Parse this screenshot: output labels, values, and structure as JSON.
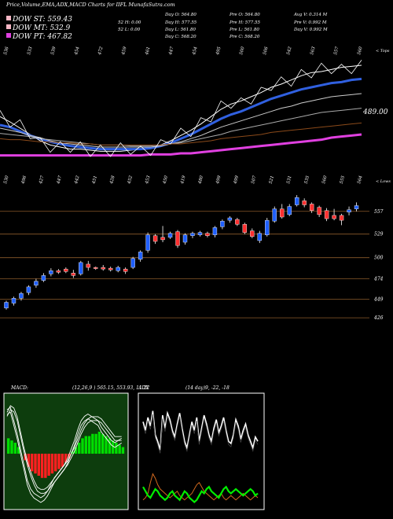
{
  "header": {
    "title": "Price,Volume,EMA,ADX,MACD Charts for IIFL",
    "site": "MunafaSutra.com"
  },
  "legend": [
    {
      "label": "DOW ST: 559.43",
      "color": "#f5b6c4"
    },
    {
      "label": "DOW MT: 532.9",
      "color": "#f5b6c4"
    },
    {
      "label": "DOW PT: 467.82",
      "color": "#e040e0"
    }
  ],
  "stats": {
    "col1": [
      "Day O: 564.80",
      "Day H: 577.55",
      "Day L: 561.80",
      "Day C: 568.20"
    ],
    "col1_prefix": [
      "",
      "52 H: 0.00",
      "52 L: 0.00",
      ""
    ],
    "col2": [
      "Pre O: 564.80",
      "Pre H: 577.55",
      "Pre L: 561.80",
      "Pre C: 568.20"
    ],
    "col3": [
      "Avg V: 0.314 M",
      "Pre V: 0.992 M",
      "Day V: 0.992 M"
    ]
  },
  "chart_data": [
    {
      "type": "line",
      "name": "ema",
      "top_labels": [
        "536",
        "533",
        "539",
        "454",
        "472",
        "459",
        "461",
        "447",
        "454",
        "495",
        "500",
        "506",
        "542",
        "563",
        "557",
        "560"
      ],
      "bottom_labels": [
        "530",
        "496",
        "427",
        "447",
        "442",
        "451",
        "428",
        "452",
        "453",
        "450",
        "419",
        "480",
        "499",
        "499",
        "507",
        "521",
        "531",
        "535",
        "560",
        "555",
        "564"
      ],
      "axis_note_top": "< Tops",
      "axis_note_bottom": "< Lows",
      "price_label": "489.00",
      "price_line_color": "#3060e0",
      "series": [
        {
          "color": "#ffffff",
          "values": [
            505,
            500,
            494,
            488,
            482,
            478,
            476,
            474,
            474,
            473,
            472,
            472,
            472,
            473,
            474,
            475,
            478,
            482,
            487,
            492,
            498,
            505,
            512,
            517,
            520,
            524,
            528,
            533,
            536,
            540,
            544,
            547,
            548,
            550,
            552,
            553,
            554
          ]
        },
        {
          "color": "#3060e0",
          "values": [
            497,
            495,
            491,
            487,
            484,
            481,
            479,
            477,
            476,
            475,
            474,
            474,
            474,
            474,
            474,
            475,
            477,
            480,
            484,
            488,
            493,
            498,
            503,
            507,
            510,
            514,
            518,
            522,
            525,
            528,
            531,
            533,
            535,
            537,
            538,
            540,
            541
          ]
        },
        {
          "color": "#cccccc",
          "values": [
            494,
            492,
            490,
            487,
            485,
            482,
            480,
            479,
            478,
            477,
            476,
            476,
            476,
            476,
            476,
            476,
            477,
            479,
            481,
            484,
            487,
            491,
            495,
            498,
            501,
            504,
            507,
            510,
            513,
            515,
            518,
            520,
            522,
            524,
            525,
            526,
            527
          ]
        },
        {
          "color": "#aaaaaa",
          "values": [
            489,
            488,
            487,
            486,
            484,
            483,
            482,
            481,
            480,
            479,
            478,
            478,
            478,
            477,
            477,
            477,
            478,
            479,
            480,
            482,
            484,
            486,
            488,
            491,
            493,
            495,
            497,
            499,
            501,
            503,
            505,
            507,
            509,
            510,
            511,
            512,
            513
          ]
        },
        {
          "color": "#8b4a1a",
          "values": [
            484,
            483,
            483,
            482,
            481,
            481,
            480,
            480,
            479,
            479,
            478,
            478,
            478,
            478,
            478,
            478,
            478,
            479,
            479,
            480,
            481,
            482,
            484,
            485,
            486,
            487,
            488,
            490,
            491,
            492,
            493,
            494,
            495,
            496,
            497,
            498,
            499
          ]
        },
        {
          "color": "#e040e0",
          "values": [
            468,
            468,
            468,
            468,
            468,
            468,
            468,
            468,
            468,
            468,
            468,
            468,
            468,
            468,
            468,
            469,
            469,
            469,
            470,
            470,
            471,
            472,
            473,
            474,
            475,
            476,
            477,
            478,
            479,
            480,
            481,
            482,
            483,
            485,
            486,
            487,
            488
          ]
        }
      ]
    },
    {
      "type": "candlestick",
      "name": "price",
      "ylabels": [
        "557",
        "529",
        "500",
        "474",
        "449",
        "426"
      ],
      "candles": [
        {
          "o": 438,
          "c": 445,
          "h": 447,
          "l": 436,
          "up": true
        },
        {
          "o": 444,
          "c": 450,
          "h": 452,
          "l": 441,
          "up": true
        },
        {
          "o": 450,
          "c": 456,
          "h": 458,
          "l": 447,
          "up": true
        },
        {
          "o": 457,
          "c": 464,
          "h": 466,
          "l": 454,
          "up": true
        },
        {
          "o": 466,
          "c": 471,
          "h": 474,
          "l": 463,
          "up": true
        },
        {
          "o": 472,
          "c": 478,
          "h": 481,
          "l": 470,
          "up": true
        },
        {
          "o": 480,
          "c": 484,
          "h": 487,
          "l": 477,
          "up": true
        },
        {
          "o": 484,
          "c": 482,
          "h": 486,
          "l": 480,
          "up": false
        },
        {
          "o": 486,
          "c": 483,
          "h": 488,
          "l": 481,
          "up": false
        },
        {
          "o": 481,
          "c": 478,
          "h": 485,
          "l": 475,
          "up": false
        },
        {
          "o": 480,
          "c": 494,
          "h": 496,
          "l": 478,
          "up": true
        },
        {
          "o": 492,
          "c": 488,
          "h": 496,
          "l": 484,
          "up": false
        },
        {
          "o": 488,
          "c": 487,
          "h": 489,
          "l": 485,
          "up": false
        },
        {
          "o": 488,
          "c": 486,
          "h": 491,
          "l": 484,
          "up": false
        },
        {
          "o": 487,
          "c": 485,
          "h": 489,
          "l": 483,
          "up": false
        },
        {
          "o": 484,
          "c": 488,
          "h": 490,
          "l": 482,
          "up": true
        },
        {
          "o": 486,
          "c": 483,
          "h": 488,
          "l": 480,
          "up": false
        },
        {
          "o": 488,
          "c": 499,
          "h": 501,
          "l": 486,
          "up": true
        },
        {
          "o": 498,
          "c": 507,
          "h": 509,
          "l": 495,
          "up": true
        },
        {
          "o": 509,
          "c": 528,
          "h": 531,
          "l": 506,
          "up": true
        },
        {
          "o": 527,
          "c": 520,
          "h": 529,
          "l": 517,
          "up": false
        },
        {
          "o": 525,
          "c": 522,
          "h": 539,
          "l": 519,
          "up": false
        },
        {
          "o": 525,
          "c": 530,
          "h": 532,
          "l": 523,
          "up": true
        },
        {
          "o": 532,
          "c": 515,
          "h": 534,
          "l": 512,
          "up": false
        },
        {
          "o": 519,
          "c": 528,
          "h": 530,
          "l": 516,
          "up": true
        },
        {
          "o": 527,
          "c": 530,
          "h": 532,
          "l": 524,
          "up": true
        },
        {
          "o": 528,
          "c": 531,
          "h": 533,
          "l": 526,
          "up": true
        },
        {
          "o": 530,
          "c": 527,
          "h": 532,
          "l": 525,
          "up": false
        },
        {
          "o": 528,
          "c": 537,
          "h": 539,
          "l": 525,
          "up": true
        },
        {
          "o": 538,
          "c": 545,
          "h": 547,
          "l": 535,
          "up": true
        },
        {
          "o": 546,
          "c": 549,
          "h": 551,
          "l": 543,
          "up": true
        },
        {
          "o": 547,
          "c": 541,
          "h": 549,
          "l": 539,
          "up": false
        },
        {
          "o": 541,
          "c": 531,
          "h": 543,
          "l": 529,
          "up": false
        },
        {
          "o": 533,
          "c": 526,
          "h": 536,
          "l": 524,
          "up": false
        },
        {
          "o": 521,
          "c": 530,
          "h": 533,
          "l": 518,
          "up": true
        },
        {
          "o": 528,
          "c": 546,
          "h": 549,
          "l": 526,
          "up": true
        },
        {
          "o": 545,
          "c": 560,
          "h": 563,
          "l": 543,
          "up": true
        },
        {
          "o": 560,
          "c": 550,
          "h": 566,
          "l": 548,
          "up": false
        },
        {
          "o": 553,
          "c": 563,
          "h": 566,
          "l": 551,
          "up": true
        },
        {
          "o": 565,
          "c": 574,
          "h": 577,
          "l": 563,
          "up": true
        },
        {
          "o": 570,
          "c": 565,
          "h": 573,
          "l": 562,
          "up": false
        },
        {
          "o": 566,
          "c": 558,
          "h": 568,
          "l": 555,
          "up": false
        },
        {
          "o": 562,
          "c": 553,
          "h": 564,
          "l": 550,
          "up": false
        },
        {
          "o": 558,
          "c": 548,
          "h": 561,
          "l": 545,
          "up": false
        },
        {
          "o": 552,
          "c": 548,
          "h": 560,
          "l": 546,
          "up": false
        },
        {
          "o": 552,
          "c": 546,
          "h": 554,
          "l": 540,
          "up": false
        },
        {
          "o": 556,
          "c": 559,
          "h": 563,
          "l": 552,
          "up": true
        },
        {
          "o": 560,
          "c": 564,
          "h": 568,
          "l": 557,
          "up": true
        }
      ]
    },
    {
      "type": "area",
      "name": "macd",
      "label": "MACD:",
      "params": "(12,26,9 ) 565.15, 553.93, 11.22",
      "histogram": [
        14,
        12,
        10,
        6,
        0,
        -6,
        -12,
        -16,
        -18,
        -20,
        -22,
        -22,
        -20,
        -18,
        -16,
        -14,
        -12,
        -8,
        -4,
        2,
        6,
        10,
        14,
        16,
        16,
        18,
        18,
        20,
        18,
        16,
        14,
        12,
        10,
        8,
        6
      ],
      "macd": [
        40,
        42,
        30,
        18,
        4,
        -10,
        -24,
        -32,
        -36,
        -38,
        -40,
        -38,
        -34,
        -28,
        -22,
        -18,
        -14,
        -10,
        -4,
        4,
        12,
        22,
        30,
        34,
        36,
        34,
        32,
        30,
        24,
        20,
        16,
        12,
        10,
        12,
        14
      ],
      "signal": [
        34,
        40,
        38,
        30,
        16,
        2,
        -10,
        -20,
        -28,
        -34,
        -36,
        -36,
        -34,
        -30,
        -26,
        -22,
        -18,
        -14,
        -10,
        -4,
        2,
        10,
        18,
        24,
        28,
        30,
        30,
        30,
        28,
        24,
        20,
        16,
        12,
        12,
        12
      ]
    },
    {
      "type": "line",
      "name": "adx",
      "label": "ADX",
      "params": "(14 day)9, -22, -18",
      "adx": [
        78,
        70,
        82,
        74,
        88,
        66,
        60,
        52,
        84,
        72,
        86,
        80,
        70,
        64,
        76,
        86,
        72,
        60,
        54,
        66,
        78,
        70,
        82,
        60,
        72,
        84,
        76,
        66,
        60,
        72,
        80,
        68,
        74,
        82,
        70,
        60,
        58,
        66,
        80,
        74,
        62,
        70,
        76,
        66,
        60,
        54,
        64,
        60
      ],
      "plus_di": [
        18,
        14,
        10,
        8,
        12,
        16,
        14,
        10,
        8,
        6,
        8,
        12,
        14,
        10,
        8,
        6,
        10,
        14,
        12,
        8,
        6,
        4,
        6,
        10,
        14,
        12,
        16,
        18,
        14,
        12,
        10,
        8,
        12,
        16,
        18,
        14,
        12,
        14,
        16,
        14,
        12,
        10,
        12,
        14,
        16,
        14,
        10,
        12
      ],
      "minus_di": [
        6,
        8,
        12,
        22,
        30,
        26,
        20,
        16,
        14,
        12,
        10,
        8,
        10,
        12,
        14,
        10,
        8,
        6,
        8,
        10,
        12,
        16,
        20,
        22,
        18,
        14,
        12,
        10,
        8,
        6,
        8,
        10,
        12,
        8,
        6,
        8,
        10,
        8,
        6,
        8,
        10,
        12,
        10,
        8,
        6,
        8,
        10,
        8
      ]
    }
  ]
}
